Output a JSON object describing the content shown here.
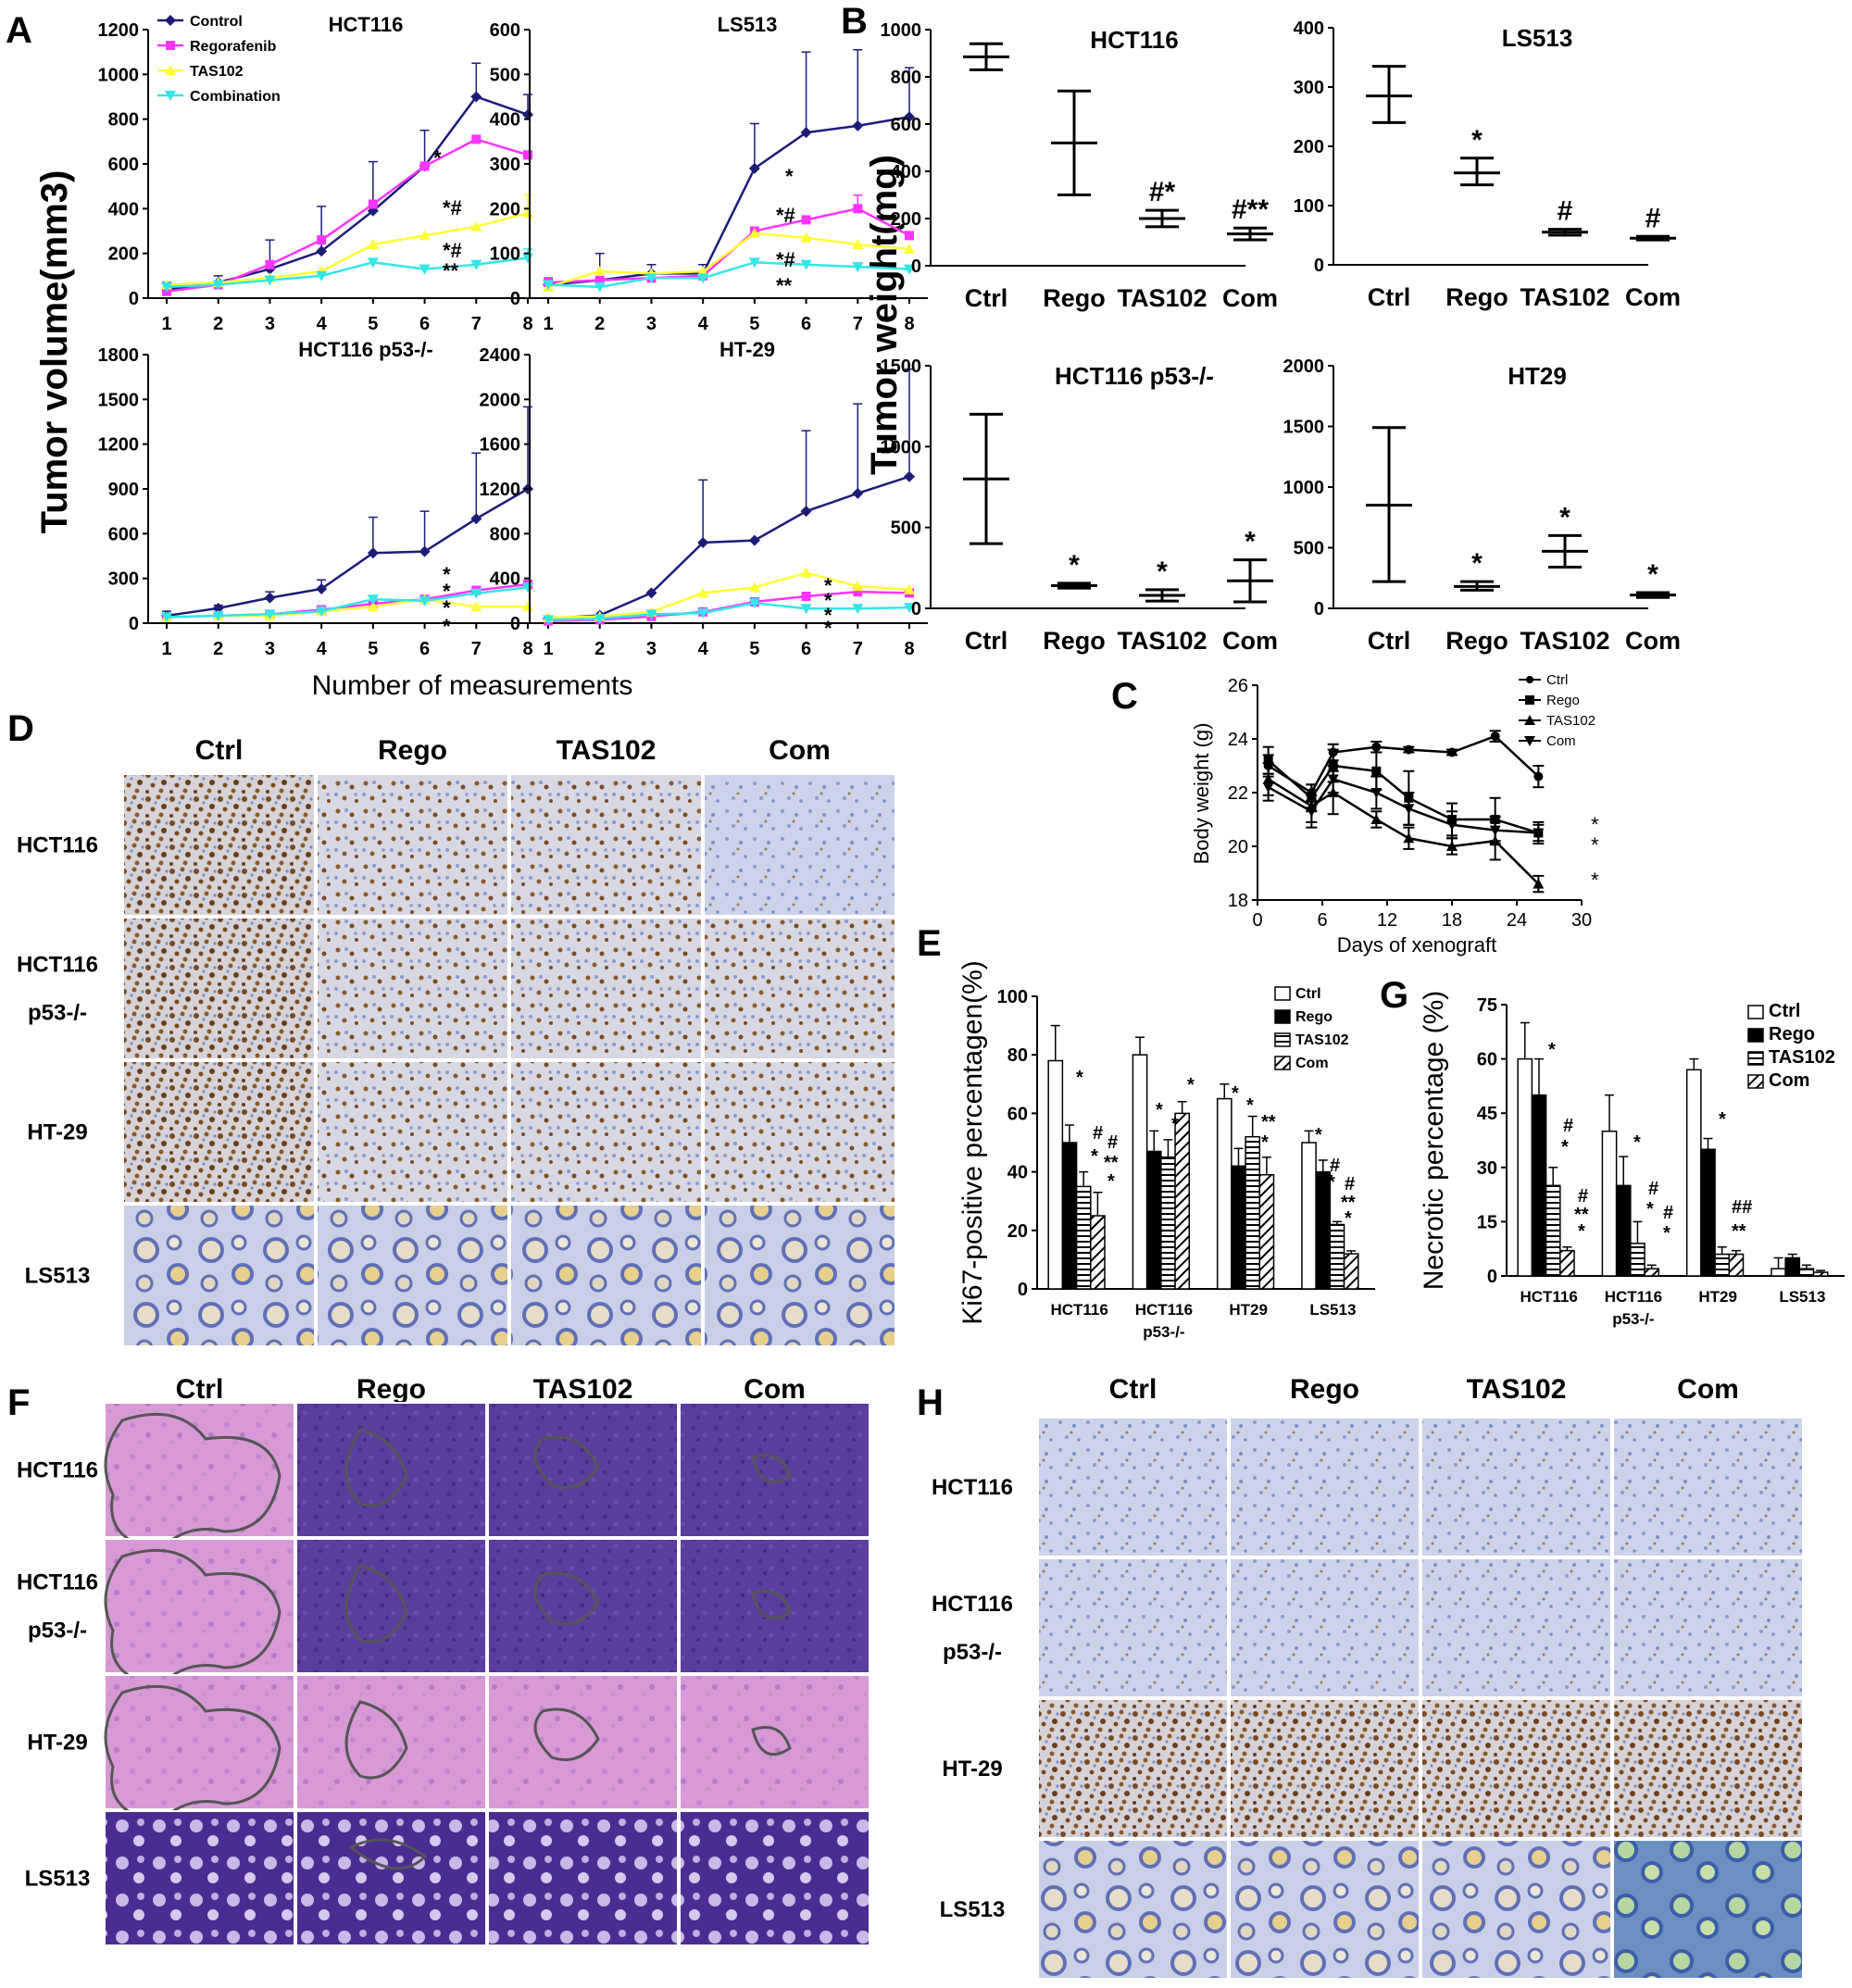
{
  "panel_letters": [
    "A",
    "B",
    "C",
    "D",
    "E",
    "F",
    "G",
    "H"
  ],
  "panel_A": {
    "ylabel": "Tumor volume(mm3)",
    "xlabel": "Number of measurements",
    "legend": [
      "Control",
      "Regorafenib",
      "TAS102",
      "Combination"
    ]
  },
  "panel_B": {
    "ylabel": "Tumor weight(mg)"
  },
  "panel_D": {
    "columns": [
      "Ctrl",
      "Rego",
      "TAS102",
      "Com"
    ],
    "rows": [
      "HCT116",
      "HCT116 p53-/-",
      "HT-29",
      "LS513"
    ]
  },
  "panel_F": {
    "columns": [
      "Ctrl",
      "Rego",
      "TAS102",
      "Com"
    ],
    "rows": [
      "HCT116",
      "HCT116 p53-/-",
      "HT-29",
      "LS513"
    ]
  },
  "panel_H": {
    "columns": [
      "Ctrl",
      "Rego",
      "TAS102",
      "Com"
    ],
    "rows": [
      "HCT116",
      "HCT116 p53-/-",
      "HT-29",
      "LS513"
    ]
  },
  "colors": {
    "control": "#1c1c78",
    "regorafenib": "#ff33ff",
    "tas102": "#ffff33",
    "combination": "#33e6e6"
  },
  "chart_data": [
    {
      "id": "A-HCT116",
      "type": "line",
      "title": "HCT116",
      "x": [
        1,
        2,
        3,
        4,
        5,
        6,
        7,
        8
      ],
      "ylim": [
        0,
        1200
      ],
      "yticks": [
        0,
        200,
        400,
        600,
        800,
        1000,
        1200
      ],
      "series": [
        {
          "name": "Control",
          "values": [
            40,
            70,
            130,
            210,
            390,
            590,
            900,
            820
          ],
          "err": [
            30,
            30,
            130,
            200,
            220,
            160,
            150,
            90
          ]
        },
        {
          "name": "Regorafenib",
          "values": [
            30,
            60,
            150,
            260,
            420,
            590,
            710,
            640
          ],
          "err": [
            0,
            0,
            0,
            0,
            0,
            0,
            0,
            0
          ]
        },
        {
          "name": "TAS102",
          "values": [
            60,
            70,
            90,
            120,
            240,
            280,
            320,
            380
          ],
          "err": [
            0,
            0,
            0,
            0,
            0,
            0,
            0,
            80
          ]
        },
        {
          "name": "Combination",
          "values": [
            50,
            60,
            80,
            100,
            160,
            130,
            150,
            180
          ],
          "err": [
            0,
            0,
            0,
            0,
            0,
            0,
            0,
            40
          ]
        }
      ],
      "annotations": [
        "*",
        "*#",
        "*#",
        "**"
      ]
    },
    {
      "id": "A-LS513",
      "type": "line",
      "title": "LS513",
      "x": [
        1,
        2,
        3,
        4,
        5,
        6,
        7,
        8
      ],
      "ylim": [
        0,
        600
      ],
      "yticks": [
        0,
        100,
        200,
        300,
        400,
        500,
        600
      ],
      "series": [
        {
          "name": "Control",
          "values": [
            30,
            40,
            55,
            55,
            290,
            370,
            385,
            405
          ],
          "err": [
            15,
            60,
            20,
            20,
            100,
            180,
            170,
            110
          ]
        },
        {
          "name": "Regorafenib",
          "values": [
            35,
            40,
            45,
            50,
            150,
            175,
            200,
            140
          ],
          "err": [
            0,
            0,
            0,
            0,
            0,
            0,
            30,
            0
          ]
        },
        {
          "name": "TAS102",
          "values": [
            25,
            60,
            55,
            60,
            145,
            135,
            120,
            110
          ],
          "err": [
            0,
            0,
            0,
            0,
            0,
            0,
            0,
            0
          ]
        },
        {
          "name": "Combination",
          "values": [
            30,
            25,
            45,
            45,
            80,
            75,
            70,
            65
          ],
          "err": [
            0,
            0,
            0,
            0,
            0,
            0,
            0,
            0
          ]
        }
      ],
      "annotations": [
        "*",
        "*#",
        "*#",
        "**"
      ]
    },
    {
      "id": "A-HCT116p53",
      "type": "line",
      "title": "HCT116 p53-/-",
      "x": [
        1,
        2,
        3,
        4,
        5,
        6,
        7,
        8
      ],
      "ylim": [
        0,
        1800
      ],
      "yticks": [
        0,
        300,
        600,
        900,
        1200,
        1500,
        1800
      ],
      "series": [
        {
          "name": "Control",
          "values": [
            50,
            100,
            170,
            230,
            470,
            480,
            700,
            900
          ],
          "err": [
            30,
            20,
            40,
            60,
            240,
            270,
            440,
            550
          ]
        },
        {
          "name": "Regorafenib",
          "values": [
            40,
            50,
            60,
            90,
            130,
            160,
            220,
            260
          ],
          "err": [
            0,
            0,
            0,
            0,
            0,
            0,
            0,
            0
          ]
        },
        {
          "name": "TAS102",
          "values": [
            40,
            50,
            50,
            80,
            110,
            160,
            110,
            110
          ],
          "err": [
            0,
            0,
            0,
            0,
            0,
            0,
            0,
            0
          ]
        },
        {
          "name": "Combination",
          "values": [
            40,
            50,
            60,
            80,
            160,
            150,
            200,
            240
          ],
          "err": [
            0,
            0,
            0,
            0,
            0,
            0,
            0,
            0
          ]
        }
      ],
      "annotations": [
        "*",
        "*",
        "*",
        "*"
      ]
    },
    {
      "id": "A-HT29",
      "type": "line",
      "title": "HT-29",
      "x": [
        1,
        2,
        3,
        4,
        5,
        6,
        7,
        8
      ],
      "ylim": [
        0,
        2400
      ],
      "yticks": [
        0,
        400,
        800,
        1200,
        1600,
        2000,
        2400
      ],
      "series": [
        {
          "name": "Control",
          "values": [
            40,
            70,
            270,
            720,
            740,
            1000,
            1160,
            1310
          ],
          "err": [
            0,
            0,
            0,
            560,
            0,
            720,
            800,
            960
          ]
        },
        {
          "name": "Regorafenib",
          "values": [
            20,
            30,
            60,
            100,
            190,
            240,
            280,
            270
          ],
          "err": [
            0,
            0,
            0,
            0,
            0,
            0,
            0,
            0
          ]
        },
        {
          "name": "TAS102",
          "values": [
            50,
            60,
            100,
            270,
            320,
            450,
            330,
            300
          ],
          "err": [
            0,
            0,
            0,
            0,
            0,
            0,
            0,
            0
          ]
        },
        {
          "name": "Combination",
          "values": [
            30,
            40,
            80,
            90,
            180,
            130,
            130,
            140
          ],
          "err": [
            0,
            0,
            0,
            0,
            0,
            0,
            0,
            0
          ]
        }
      ],
      "annotations": [
        "*",
        "*",
        "*",
        "*"
      ]
    },
    {
      "id": "B-HCT116",
      "type": "scatter",
      "title": "HCT116",
      "categories": [
        "Ctrl",
        "Rego",
        "TAS102",
        "Com"
      ],
      "ylim": [
        0,
        1000
      ],
      "yticks": [
        0,
        200,
        400,
        600,
        800,
        1000
      ],
      "mean": [
        885,
        520,
        200,
        135
      ],
      "low": [
        830,
        300,
        165,
        110
      ],
      "high": [
        940,
        740,
        235,
        160
      ],
      "annotations": [
        "",
        "",
        "#*",
        "#**"
      ]
    },
    {
      "id": "B-LS513",
      "type": "scatter",
      "title": "LS513",
      "categories": [
        "Ctrl",
        "Rego",
        "TAS102",
        "Com"
      ],
      "ylim": [
        0,
        400
      ],
      "yticks": [
        0,
        100,
        200,
        300,
        400
      ],
      "mean": [
        285,
        155,
        55,
        45
      ],
      "low": [
        240,
        135,
        50,
        42
      ],
      "high": [
        335,
        180,
        60,
        48
      ],
      "annotations": [
        "",
        "*",
        "#",
        "#"
      ]
    },
    {
      "id": "B-HCT116p53",
      "type": "scatter",
      "title": "HCT116 p53-/-",
      "categories": [
        "Ctrl",
        "Rego",
        "TAS102",
        "Com"
      ],
      "ylim": [
        0,
        1500
      ],
      "yticks": [
        0,
        500,
        1000,
        1500
      ],
      "mean": [
        800,
        140,
        80,
        170
      ],
      "low": [
        400,
        125,
        45,
        40
      ],
      "high": [
        1200,
        155,
        115,
        300
      ],
      "annotations": [
        "",
        "*",
        "*",
        "*"
      ]
    },
    {
      "id": "B-HT29",
      "type": "scatter",
      "title": "HT29",
      "categories": [
        "Ctrl",
        "Rego",
        "TAS102",
        "Com"
      ],
      "ylim": [
        0,
        2000
      ],
      "yticks": [
        0,
        500,
        1000,
        1500,
        2000
      ],
      "mean": [
        850,
        180,
        470,
        110
      ],
      "low": [
        220,
        150,
        340,
        90
      ],
      "high": [
        1490,
        220,
        600,
        130
      ],
      "annotations": [
        "",
        "*",
        "*",
        "*"
      ]
    },
    {
      "id": "C",
      "type": "line",
      "xlabel": "Days of xenograft",
      "ylabel": "Body weight (g)",
      "xlim": [
        0,
        30
      ],
      "ylim": [
        18,
        26
      ],
      "xticks": [
        0,
        6,
        12,
        18,
        24,
        30
      ],
      "yticks": [
        18,
        20,
        22,
        24,
        26
      ],
      "x": [
        1,
        5,
        7,
        11,
        14,
        18,
        22,
        26
      ],
      "series": [
        {
          "name": "Ctrl",
          "values": [
            23.0,
            22.0,
            23.5,
            23.7,
            23.6,
            23.5,
            24.1,
            22.6
          ],
          "err": [
            0.4,
            0.3,
            0.3,
            0.2,
            0.1,
            0.1,
            0.2,
            0.4
          ]
        },
        {
          "name": "Rego",
          "values": [
            23.2,
            21.8,
            23.0,
            22.8,
            21.8,
            21.0,
            21.0,
            20.5
          ],
          "err": [
            0.5,
            0.5,
            0.6,
            0.7,
            1.0,
            0.6,
            0.8,
            0.4
          ]
        },
        {
          "name": "TAS102",
          "values": [
            22.5,
            21.5,
            22.0,
            21.0,
            20.3,
            20.0,
            20.2,
            18.6
          ],
          "err": [
            0.6,
            0.6,
            0.8,
            0.3,
            0.4,
            0.3,
            0.7,
            0.3
          ]
        },
        {
          "name": "Com",
          "values": [
            22.2,
            21.3,
            22.5,
            22.0,
            21.4,
            20.8,
            20.6,
            20.5
          ],
          "err": [
            0.5,
            0.6,
            0.5,
            0.6,
            0.6,
            0.5,
            0.5,
            0.3
          ]
        }
      ],
      "annotations": [
        "*",
        "*",
        "*"
      ]
    },
    {
      "id": "E",
      "type": "bar",
      "ylabel": "Ki67-positive percentagen(%)",
      "categories": [
        "HCT116",
        "HCT116 p53-/-",
        "HT29",
        "LS513"
      ],
      "ylim": [
        0,
        100
      ],
      "yticks": [
        0,
        20,
        40,
        60,
        80,
        100
      ],
      "series": [
        {
          "name": "Ctrl",
          "values": [
            78,
            80,
            65,
            50
          ],
          "err": [
            12,
            6,
            5,
            4
          ]
        },
        {
          "name": "Rego",
          "values": [
            50,
            47,
            42,
            40
          ],
          "err": [
            6,
            7,
            6,
            4
          ]
        },
        {
          "name": "TAS102",
          "values": [
            35,
            45,
            52,
            22
          ],
          "err": [
            5,
            6,
            7,
            1
          ]
        },
        {
          "name": "Com",
          "values": [
            25,
            60,
            39,
            12
          ],
          "err": [
            8,
            4,
            6,
            1
          ]
        }
      ]
    },
    {
      "id": "G",
      "type": "bar",
      "ylabel": "Necrotic percentage (%)",
      "categories": [
        "HCT116",
        "HCT116 p53-/-",
        "HT29",
        "LS513"
      ],
      "ylim": [
        0,
        75
      ],
      "yticks": [
        0,
        15,
        30,
        45,
        60,
        75
      ],
      "series": [
        {
          "name": "Ctrl",
          "values": [
            60,
            40,
            57,
            2
          ],
          "err": [
            10,
            10,
            3,
            3
          ]
        },
        {
          "name": "Rego",
          "values": [
            50,
            25,
            35,
            5
          ],
          "err": [
            10,
            8,
            3,
            1
          ]
        },
        {
          "name": "TAS102",
          "values": [
            25,
            9,
            6,
            2
          ],
          "err": [
            5,
            6,
            2,
            1
          ]
        },
        {
          "name": "Com",
          "values": [
            7,
            2,
            6,
            1
          ],
          "err": [
            1,
            1,
            1,
            0.5
          ]
        }
      ]
    }
  ]
}
